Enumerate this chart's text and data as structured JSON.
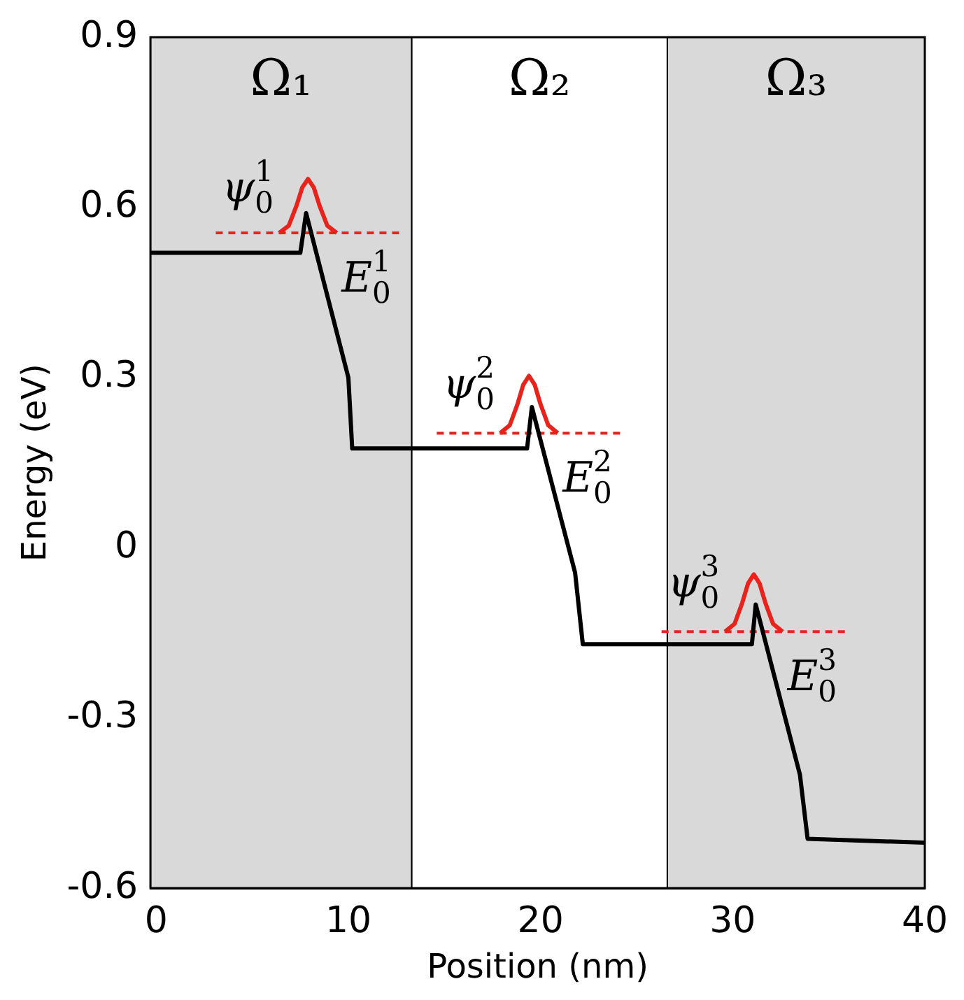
{
  "chart_data": {
    "type": "line",
    "xlabel": "Position (nm)",
    "ylabel": "Energy (eV)",
    "xlim": [
      -0.3,
      40
    ],
    "xticks": [
      0,
      10,
      20,
      30,
      40
    ],
    "ylim": [
      -0.6,
      0.9
    ],
    "yticks": [
      -0.6,
      -0.3,
      0,
      0.3,
      0.6,
      0.9
    ],
    "grid": false,
    "legend": false,
    "marker": "none",
    "bands": [
      {
        "axis": "x",
        "from": -0.3,
        "to": 13.3,
        "label": "Ω₁",
        "color": "#d9d9d9"
      },
      {
        "axis": "x",
        "from": 13.3,
        "to": 26.6,
        "label": "Ω₂",
        "color": "#ffffff"
      },
      {
        "axis": "x",
        "from": 26.6,
        "to": 40,
        "label": "Ω₃",
        "color": "#d9d9d9"
      }
    ],
    "series": [
      {
        "color": "#000000",
        "line_style": "solid",
        "x": [
          -0.3,
          7.5,
          7.8,
          10,
          10.2,
          19.3,
          19.55,
          21.8,
          22.2,
          31,
          31.2,
          33.5,
          33.9,
          40
        ],
        "values": [
          0.52,
          0.52,
          0.59,
          0.3,
          0.175,
          0.175,
          0.248,
          -0.044,
          -0.17,
          -0.17,
          -0.1,
          -0.4,
          -0.513,
          -0.52
        ]
      },
      {
        "color": "#e8231b",
        "line_style": "dashed",
        "x": [
          3.1,
          12.8
        ],
        "values": [
          0.555,
          0.555
        ]
      },
      {
        "color": "#e8231b",
        "line_style": "dashed",
        "x": [
          14.6,
          24.4
        ],
        "values": [
          0.202,
          0.202
        ]
      },
      {
        "color": "#e8231b",
        "line_style": "dashed",
        "x": [
          26.3,
          36
        ],
        "values": [
          -0.148,
          -0.148
        ]
      },
      {
        "color": "#e8231b",
        "line_style": "solid",
        "x": [
          6.4,
          6.9,
          7.3,
          7.6,
          7.9,
          8.2,
          8.5,
          8.9,
          9.4
        ],
        "values": [
          0.555,
          0.568,
          0.603,
          0.635,
          0.65,
          0.635,
          0.603,
          0.568,
          0.555
        ]
      },
      {
        "color": "#e8231b",
        "line_style": "solid",
        "x": [
          17.9,
          18.4,
          18.8,
          19.1,
          19.4,
          19.7,
          20,
          20.4,
          20.9
        ],
        "values": [
          0.202,
          0.216,
          0.253,
          0.287,
          0.303,
          0.287,
          0.253,
          0.216,
          0.202
        ]
      },
      {
        "color": "#e8231b",
        "line_style": "solid",
        "x": [
          29.6,
          30.1,
          30.5,
          30.8,
          31.1,
          31.4,
          31.7,
          32.1,
          32.6
        ],
        "values": [
          -0.148,
          -0.134,
          -0.097,
          -0.063,
          -0.047,
          -0.063,
          -0.097,
          -0.134,
          -0.148
        ]
      }
    ],
    "annotations": [
      "ψ$_{0}$$^{1}$",
      "E$_{0}$$^{1}$",
      "ψ$_{0}$$^{2}$",
      "E$_{0}$$^{2}$",
      "ψ$_{0}$$^{3}$",
      "E$_{0}$$^{3}$"
    ]
  }
}
